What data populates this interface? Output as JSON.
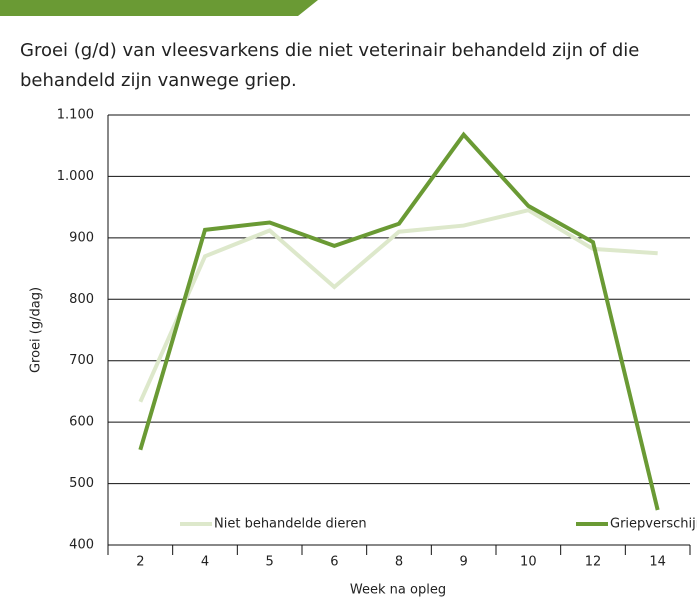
{
  "chart_data": {
    "type": "line",
    "subtitle": [
      "Groei (g/d) van vleesvarkens die niet veterinair behandeld zijn of die",
      "behandeld zijn vanwege griep."
    ],
    "x_label": "Week na opleg",
    "y_label": "Groei (g/dag)",
    "categories": [
      "2",
      "4",
      "5",
      "6",
      "8",
      "9",
      "10",
      "12",
      "14"
    ],
    "series": [
      {
        "name": "Niet behandelde dieren",
        "color": "#dde8cb",
        "values": [
          633,
          870,
          912,
          820,
          910,
          920,
          945,
          882,
          875
        ]
      },
      {
        "name": "Griepverschijnselen",
        "color": "#6a9a34",
        "values": [
          555,
          913,
          925,
          887,
          923,
          1068,
          952,
          893,
          457
        ]
      }
    ],
    "ylim": [
      400,
      1100
    ],
    "yticks": [
      400,
      500,
      600,
      700,
      800,
      900,
      {
        "value": 1000,
        "label": "1.000"
      },
      {
        "value": 1100,
        "label": "1.100"
      }
    ],
    "grid": true,
    "legend": "bottom"
  }
}
